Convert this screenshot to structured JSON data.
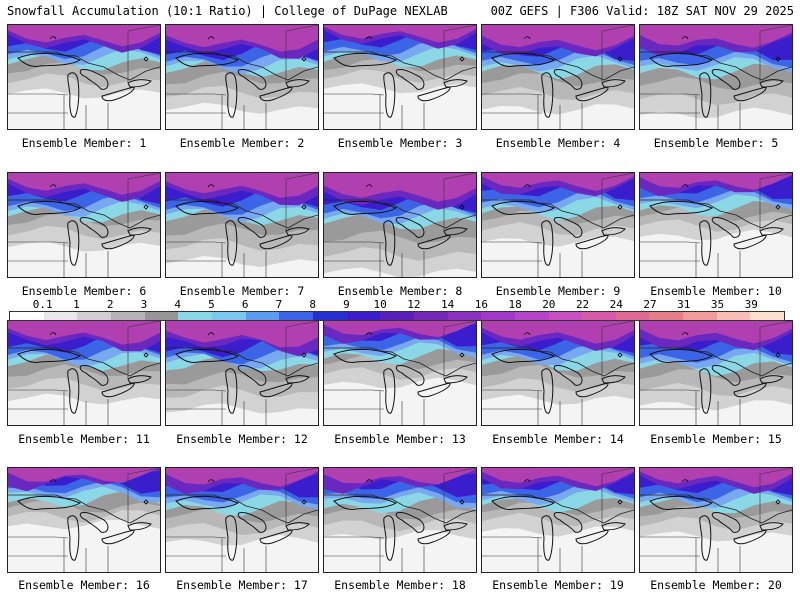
{
  "header": {
    "left_title": "Snowfall Accumulation (10:1 Ratio) | College of DuPage NEXLAB",
    "right_title": "00Z GEFS | F306 Valid: 18Z SAT NOV 29 2025"
  },
  "colorbar": {
    "labels": [
      "0.1",
      "1",
      "2",
      "3",
      "4",
      "5",
      "6",
      "7",
      "8",
      "9",
      "10",
      "12",
      "14",
      "16",
      "18",
      "20",
      "22",
      "24",
      "27",
      "31",
      "35",
      "39"
    ],
    "colors": [
      "#ffffff",
      "#e8e8e8",
      "#d0d0d0",
      "#b4b4b4",
      "#969696",
      "#8ad8e6",
      "#78c8f0",
      "#5a9cf0",
      "#3c64e6",
      "#2430d2",
      "#3a1ecd",
      "#5820b8",
      "#7428b8",
      "#8c30c0",
      "#a038c8",
      "#b444c8",
      "#c850c0",
      "#d65aa8",
      "#de6890",
      "#e67e88",
      "#f09c98",
      "#f8c0b4",
      "#fce0cc"
    ]
  },
  "panels": [
    {
      "label": "Ensemble Member: 1",
      "snow": [
        0.3,
        0.1,
        0.65,
        0.2
      ]
    },
    {
      "label": "Ensemble Member: 2",
      "snow": [
        0.45,
        0.15,
        0.55,
        0.15
      ]
    },
    {
      "label": "Ensemble Member: 3",
      "snow": [
        0.25,
        0.1,
        0.85,
        0.2
      ]
    },
    {
      "label": "Ensemble Member: 4",
      "snow": [
        0.45,
        0.15,
        0.6,
        0.25
      ]
    },
    {
      "label": "Ensemble Member: 5",
      "snow": [
        0.5,
        0.2,
        0.75,
        0.3
      ]
    },
    {
      "label": "Ensemble Member: 6",
      "snow": [
        0.35,
        0.05,
        0.75,
        0.2
      ]
    },
    {
      "label": "Ensemble Member: 7",
      "snow": [
        0.5,
        0.25,
        0.65,
        0.15
      ]
    },
    {
      "label": "Ensemble Member: 8",
      "snow": [
        0.6,
        0.3,
        0.55,
        0.2
      ]
    },
    {
      "label": "Ensemble Member: 9",
      "snow": [
        0.3,
        0.05,
        0.9,
        0.25
      ]
    },
    {
      "label": "Ensemble Member: 10",
      "snow": [
        0.25,
        0.05,
        0.85,
        0.3
      ]
    },
    {
      "label": "Ensemble Member: 11",
      "snow": [
        0.4,
        0.15,
        0.65,
        0.15
      ]
    },
    {
      "label": "Ensemble Member: 12",
      "snow": [
        0.5,
        0.25,
        0.55,
        0.1
      ]
    },
    {
      "label": "Ensemble Member: 13",
      "snow": [
        0.25,
        0.05,
        0.9,
        0.3
      ]
    },
    {
      "label": "Ensemble Member: 14",
      "snow": [
        0.4,
        0.15,
        0.7,
        0.2
      ]
    },
    {
      "label": "Ensemble Member: 15",
      "snow": [
        0.45,
        0.1,
        0.8,
        0.25
      ]
    },
    {
      "label": "Ensemble Member: 16",
      "snow": [
        0.2,
        0.05,
        0.85,
        0.35
      ]
    },
    {
      "label": "Ensemble Member: 17",
      "snow": [
        0.35,
        0.1,
        0.85,
        0.3
      ]
    },
    {
      "label": "Ensemble Member: 18",
      "snow": [
        0.3,
        0.05,
        0.9,
        0.35
      ]
    },
    {
      "label": "Ensemble Member: 19",
      "snow": [
        0.25,
        0.05,
        0.8,
        0.25
      ]
    },
    {
      "label": "Ensemble Member: 20",
      "snow": [
        0.3,
        0.1,
        0.8,
        0.2
      ]
    }
  ]
}
